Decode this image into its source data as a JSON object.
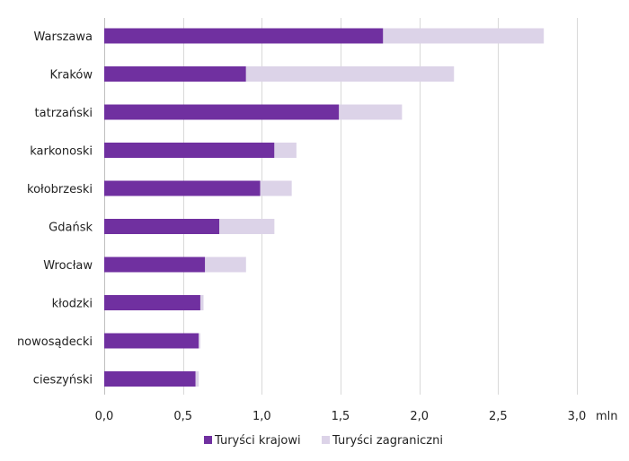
{
  "chart_data": {
    "type": "bar",
    "orientation": "horizontal",
    "stacked": true,
    "categories": [
      "Warszawa",
      "Kraków",
      "tatrzański",
      "karkonoski",
      "kołobrzeski",
      "Gdańsk",
      "Wrocław",
      "kłodzki",
      "nowosądecki",
      "cieszyński"
    ],
    "series": [
      {
        "name": "Turyści krajowi",
        "color": "#7030a0",
        "values": [
          1.77,
          0.9,
          1.49,
          1.08,
          0.99,
          0.73,
          0.64,
          0.61,
          0.6,
          0.58
        ]
      },
      {
        "name": "Turyści zagraniczni",
        "color": "#dcd3e8",
        "values": [
          1.02,
          1.32,
          0.4,
          0.14,
          0.2,
          0.35,
          0.26,
          0.02,
          0.01,
          0.02
        ]
      }
    ],
    "xlim": [
      0,
      3.0
    ],
    "xticks": [
      0,
      0.5,
      1.0,
      1.5,
      2.0,
      2.5,
      3.0
    ],
    "xtick_labels": [
      "0,0",
      "0,5",
      "1,0",
      "1,5",
      "2,0",
      "2,5",
      "3,0"
    ],
    "xunit": "mln",
    "grid": "vertical",
    "legend_position": "bottom"
  }
}
